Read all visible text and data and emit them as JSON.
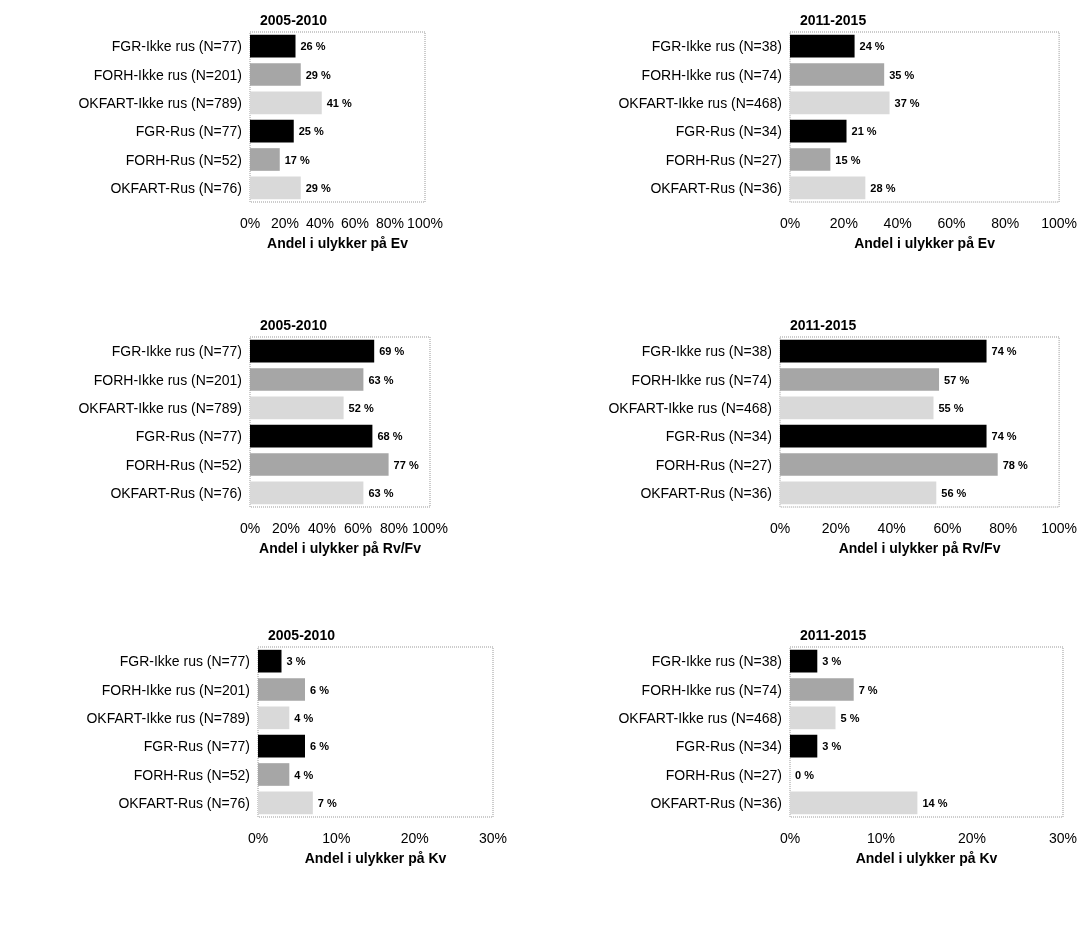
{
  "chart_data": [
    {
      "type": "bar",
      "orientation": "horizontal",
      "title": "2005-2010",
      "xlabel": "Andel i ulykker på Ev",
      "categories": [
        "FGR-Ikke rus (N=77)",
        "FORH-Ikke rus (N=201)",
        "OKFART-Ikke rus (N=789)",
        "FGR-Rus (N=77)",
        "FORH-Rus (N=52)",
        "OKFART-Rus (N=76)"
      ],
      "values": [
        26,
        29,
        41,
        25,
        17,
        29
      ],
      "value_labels": [
        "26 %",
        "29 %",
        "41 %",
        "25 %",
        "17 %",
        "29 %"
      ],
      "colors": [
        "#000000",
        "#a6a6a6",
        "#d9d9d9",
        "#000000",
        "#a6a6a6",
        "#d9d9d9"
      ],
      "xlim": [
        0,
        100
      ],
      "xticks": [
        {
          "value": 0,
          "label": "0%"
        },
        {
          "value": 20,
          "label": "20%"
        },
        {
          "value": 40,
          "label": "40%"
        },
        {
          "value": 60,
          "label": "60%"
        },
        {
          "value": 80,
          "label": "80%"
        },
        {
          "value": 100,
          "label": "100%"
        }
      ]
    },
    {
      "type": "bar",
      "orientation": "horizontal",
      "title": "2011-2015",
      "xlabel": "Andel i ulykker på Ev",
      "categories": [
        "FGR-Ikke rus (N=38)",
        "FORH-Ikke rus (N=74)",
        "OKFART-Ikke rus (N=468)",
        "FGR-Rus (N=34)",
        "FORH-Rus (N=27)",
        "OKFART-Rus (N=36)"
      ],
      "values": [
        24,
        35,
        37,
        21,
        15,
        28
      ],
      "value_labels": [
        "24 %",
        "35 %",
        "37 %",
        "21 %",
        "15 %",
        "28 %"
      ],
      "colors": [
        "#000000",
        "#a6a6a6",
        "#d9d9d9",
        "#000000",
        "#a6a6a6",
        "#d9d9d9"
      ],
      "xlim": [
        0,
        100
      ],
      "xticks": [
        {
          "value": 0,
          "label": "0%"
        },
        {
          "value": 20,
          "label": "20%"
        },
        {
          "value": 40,
          "label": "40%"
        },
        {
          "value": 60,
          "label": "60%"
        },
        {
          "value": 80,
          "label": "80%"
        },
        {
          "value": 100,
          "label": "100%"
        }
      ]
    },
    {
      "type": "bar",
      "orientation": "horizontal",
      "title": "2005-2010",
      "xlabel": "Andel i ulykker på Rv/Fv",
      "categories": [
        "FGR-Ikke rus (N=77)",
        "FORH-Ikke rus (N=201)",
        "OKFART-Ikke rus (N=789)",
        "FGR-Rus (N=77)",
        "FORH-Rus (N=52)",
        "OKFART-Rus (N=76)"
      ],
      "values": [
        69,
        63,
        52,
        68,
        77,
        63
      ],
      "value_labels": [
        "69 %",
        "63 %",
        "52 %",
        "68 %",
        "77 %",
        "63 %"
      ],
      "colors": [
        "#000000",
        "#a6a6a6",
        "#d9d9d9",
        "#000000",
        "#a6a6a6",
        "#d9d9d9"
      ],
      "xlim": [
        0,
        100
      ],
      "xticks": [
        {
          "value": 0,
          "label": "0%"
        },
        {
          "value": 20,
          "label": "20%"
        },
        {
          "value": 40,
          "label": "40%"
        },
        {
          "value": 60,
          "label": "60%"
        },
        {
          "value": 80,
          "label": "80%"
        },
        {
          "value": 100,
          "label": "100%"
        }
      ]
    },
    {
      "type": "bar",
      "orientation": "horizontal",
      "title": "2011-2015",
      "xlabel": "Andel i ulykker på Rv/Fv",
      "categories": [
        "FGR-Ikke rus (N=38)",
        "FORH-Ikke rus (N=74)",
        "OKFART-Ikke rus (N=468)",
        "FGR-Rus (N=34)",
        "FORH-Rus (N=27)",
        "OKFART-Rus (N=36)"
      ],
      "values": [
        74,
        57,
        55,
        74,
        78,
        56
      ],
      "value_labels": [
        "74 %",
        "57 %",
        "55 %",
        "74 %",
        "78 %",
        "56 %"
      ],
      "colors": [
        "#000000",
        "#a6a6a6",
        "#d9d9d9",
        "#000000",
        "#a6a6a6",
        "#d9d9d9"
      ],
      "xlim": [
        0,
        100
      ],
      "xticks": [
        {
          "value": 0,
          "label": "0%"
        },
        {
          "value": 20,
          "label": "20%"
        },
        {
          "value": 40,
          "label": "40%"
        },
        {
          "value": 60,
          "label": "60%"
        },
        {
          "value": 80,
          "label": "80%"
        },
        {
          "value": 100,
          "label": "100%"
        }
      ]
    },
    {
      "type": "bar",
      "orientation": "horizontal",
      "title": "2005-2010",
      "xlabel": "Andel i ulykker på Kv",
      "categories": [
        "FGR-Ikke rus (N=77)",
        "FORH-Ikke rus (N=201)",
        "OKFART-Ikke rus (N=789)",
        "FGR-Rus (N=77)",
        "FORH-Rus (N=52)",
        "OKFART-Rus (N=76)"
      ],
      "values": [
        3,
        6,
        4,
        6,
        4,
        7
      ],
      "value_labels": [
        "3 %",
        "6 %",
        "4 %",
        "6 %",
        "4 %",
        "7 %"
      ],
      "colors": [
        "#000000",
        "#a6a6a6",
        "#d9d9d9",
        "#000000",
        "#a6a6a6",
        "#d9d9d9"
      ],
      "xlim": [
        0,
        30
      ],
      "xticks": [
        {
          "value": 0,
          "label": "0%"
        },
        {
          "value": 10,
          "label": "10%"
        },
        {
          "value": 20,
          "label": "20%"
        },
        {
          "value": 30,
          "label": "30%"
        }
      ]
    },
    {
      "type": "bar",
      "orientation": "horizontal",
      "title": "2011-2015",
      "xlabel": "Andel i ulykker på Kv",
      "categories": [
        "FGR-Ikke rus (N=38)",
        "FORH-Ikke rus (N=74)",
        "OKFART-Ikke rus (N=468)",
        "FGR-Rus (N=34)",
        "FORH-Rus (N=27)",
        "OKFART-Rus (N=36)"
      ],
      "values": [
        3,
        7,
        5,
        3,
        0,
        14
      ],
      "value_labels": [
        "3 %",
        "7 %",
        "5 %",
        "3 %",
        "0 %",
        "14 %"
      ],
      "colors": [
        "#000000",
        "#a6a6a6",
        "#d9d9d9",
        "#000000",
        "#a6a6a6",
        "#d9d9d9"
      ],
      "xlim": [
        0,
        30
      ],
      "xticks": [
        {
          "value": 0,
          "label": "0%"
        },
        {
          "value": 10,
          "label": "10%"
        },
        {
          "value": 20,
          "label": "20%"
        },
        {
          "value": 30,
          "label": "30%"
        }
      ]
    }
  ]
}
